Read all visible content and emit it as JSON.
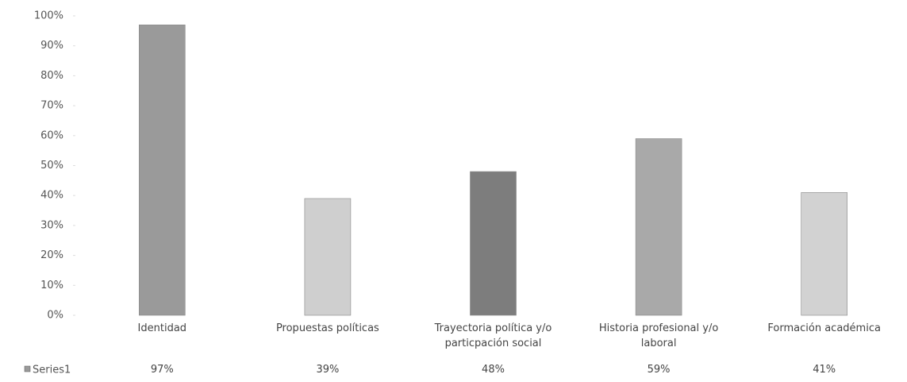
{
  "chart_data": {
    "type": "bar",
    "categories": [
      "Identidad",
      "Propuestas políticas",
      "Trayectoria política y/o particpación social",
      "Historia profesional y/o laboral",
      "Formación académica"
    ],
    "series": [
      {
        "name": "Series1",
        "colors": [
          "#9a9a9a",
          "#cfcfcf",
          "#7d7d7d",
          "#a9a9a9",
          "#d2d2d2"
        ],
        "values": [
          97,
          39,
          48,
          59,
          41
        ],
        "value_labels": [
          "97%",
          "39%",
          "48%",
          "59%",
          "41%"
        ]
      }
    ],
    "ylim": [
      0,
      100
    ],
    "yticks": [
      {
        "value": 0,
        "label": "0%"
      },
      {
        "value": 10,
        "label": "10%"
      },
      {
        "value": 20,
        "label": "20%"
      },
      {
        "value": 30,
        "label": "30%"
      },
      {
        "value": 40,
        "label": "40%"
      },
      {
        "value": 50,
        "label": "50%"
      },
      {
        "value": 60,
        "label": "60%"
      },
      {
        "value": 70,
        "label": "70%"
      },
      {
        "value": 80,
        "label": "80%"
      },
      {
        "value": 90,
        "label": "90%"
      },
      {
        "value": 100,
        "label": "100%"
      }
    ]
  }
}
